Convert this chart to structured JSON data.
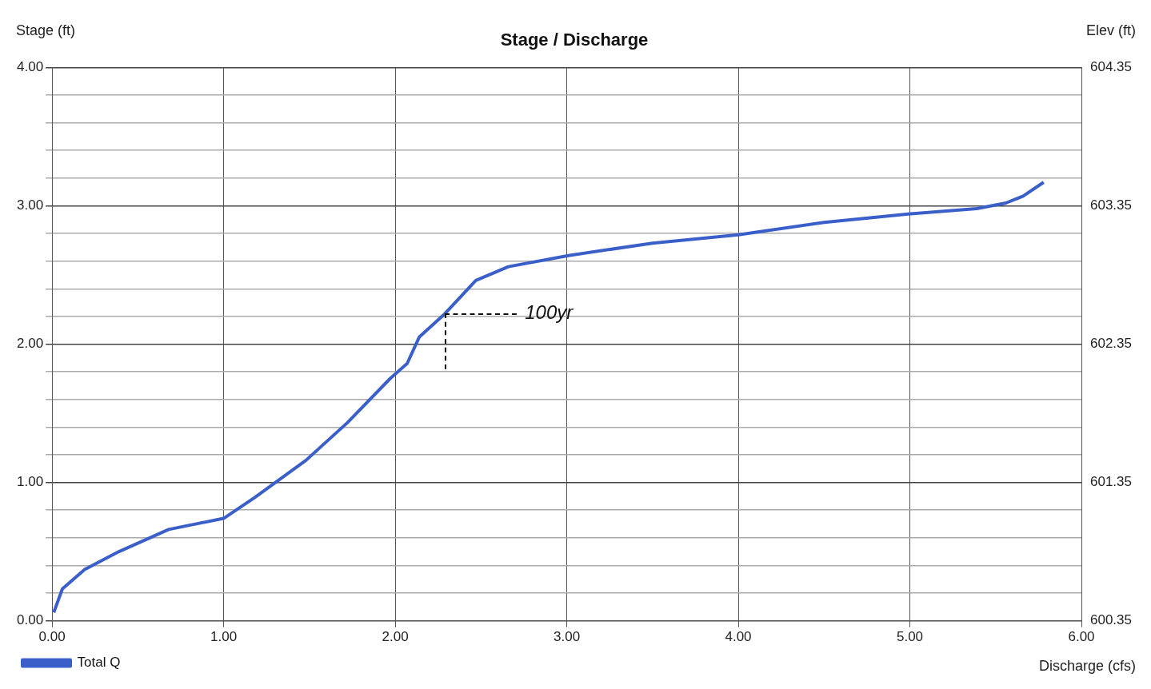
{
  "chart_data": {
    "type": "line",
    "title": "Stage / Discharge",
    "xlabel": "Discharge (cfs)",
    "ylabel": "Stage (ft)",
    "y2label": "Elev (ft)",
    "x": [
      0.01,
      0.06,
      0.19,
      0.39,
      0.68,
      1.0,
      1.18,
      1.48,
      1.72,
      1.97,
      2.07,
      2.14,
      2.29,
      2.47,
      2.66,
      3.01,
      3.5,
      4.0,
      4.5,
      4.99,
      5.39,
      5.56,
      5.66,
      5.78
    ],
    "series": [
      {
        "name": "Total Q",
        "color": "#3a5fc8",
        "values": [
          0.06,
          0.23,
          0.37,
          0.5,
          0.66,
          0.74,
          0.89,
          1.16,
          1.43,
          1.75,
          1.86,
          2.05,
          2.22,
          2.46,
          2.56,
          2.64,
          2.73,
          2.79,
          2.88,
          2.94,
          2.98,
          3.02,
          3.07,
          3.17
        ]
      }
    ],
    "xlim": [
      0,
      6
    ],
    "xticks": [
      {
        "value": 0,
        "label": "0.00"
      },
      {
        "value": 1,
        "label": "1.00"
      },
      {
        "value": 2,
        "label": "2.00"
      },
      {
        "value": 3,
        "label": "3.00"
      },
      {
        "value": 4,
        "label": "4.00"
      },
      {
        "value": 5,
        "label": "5.00"
      },
      {
        "value": 6,
        "label": "6.00"
      }
    ],
    "ylim": [
      0,
      4
    ],
    "yticks": [
      {
        "value": 0,
        "label": "0.00"
      },
      {
        "value": 0.2,
        "label": null
      },
      {
        "value": 0.4,
        "label": null
      },
      {
        "value": 0.6,
        "label": null
      },
      {
        "value": 0.8,
        "label": null
      },
      {
        "value": 1,
        "label": "1.00"
      },
      {
        "value": 1.2,
        "label": null
      },
      {
        "value": 1.4,
        "label": null
      },
      {
        "value": 1.6,
        "label": null
      },
      {
        "value": 1.8,
        "label": null
      },
      {
        "value": 2,
        "label": "2.00"
      },
      {
        "value": 2.2,
        "label": null
      },
      {
        "value": 2.4,
        "label": null
      },
      {
        "value": 2.6,
        "label": null
      },
      {
        "value": 2.8,
        "label": null
      },
      {
        "value": 3,
        "label": "3.00"
      },
      {
        "value": 3.2,
        "label": null
      },
      {
        "value": 3.4,
        "label": null
      },
      {
        "value": 3.6,
        "label": null
      },
      {
        "value": 3.8,
        "label": null
      },
      {
        "value": 4,
        "label": "4.00"
      }
    ],
    "y2lim": [
      600.35,
      604.35
    ],
    "y2ticks": [
      600.35,
      601.35,
      602.35,
      603.35,
      604.35
    ],
    "annotations": [
      {
        "text": "100yr",
        "x": 2.29,
        "y": 2.22
      }
    ],
    "grid": true,
    "legend": "bottom left",
    "marker": "none",
    "line_style": "solid"
  }
}
